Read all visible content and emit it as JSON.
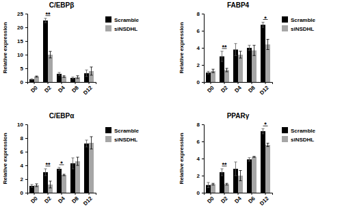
{
  "chart_data": [
    {
      "type": "bar",
      "title": "C/EBPβ",
      "y_label": "Relative expression",
      "categories": [
        "D0",
        "D2",
        "D4",
        "D8",
        "D12"
      ],
      "series": [
        {
          "name": "Scramble",
          "color": "#000000",
          "values": [
            1.0,
            22.5,
            3.0,
            1.5,
            3.2
          ],
          "errors": [
            0.2,
            0.8,
            0.5,
            0.3,
            1.2
          ]
        },
        {
          "name": "siNSDHL",
          "color": "#a6a6a6",
          "values": [
            2.0,
            10.0,
            2.0,
            1.8,
            4.0
          ],
          "errors": [
            0.2,
            1.2,
            0.3,
            0.5,
            1.5
          ]
        }
      ],
      "ylim": [
        0,
        25
      ],
      "yticks": [
        0,
        5,
        10,
        15,
        20,
        25
      ],
      "legend": "right",
      "annotations": [
        {
          "text": "**",
          "category": "D2"
        }
      ]
    },
    {
      "type": "bar",
      "title": "FABP4",
      "y_label": "Relative expression",
      "categories": [
        "D0",
        "D2",
        "D4",
        "D8",
        "D12"
      ],
      "series": [
        {
          "name": "Scramble",
          "color": "#000000",
          "values": [
            1.1,
            3.0,
            3.8,
            4.0,
            6.7
          ],
          "errors": [
            0.15,
            0.6,
            0.7,
            0.3,
            0.3
          ]
        },
        {
          "name": "siNSDHL",
          "color": "#a6a6a6",
          "values": [
            1.3,
            1.4,
            3.2,
            3.7,
            4.4
          ],
          "errors": [
            0.2,
            0.2,
            0.4,
            0.6,
            0.6
          ]
        }
      ],
      "ylim": [
        0,
        8
      ],
      "yticks": [
        0,
        2,
        4,
        6,
        8
      ],
      "legend": "right",
      "annotations": [
        {
          "text": "**",
          "category": "D2"
        },
        {
          "text": "*",
          "category": "D12"
        }
      ]
    },
    {
      "type": "bar",
      "title": "C/EBPα",
      "y_label": "Relative expression",
      "categories": [
        "D0",
        "D2",
        "D4",
        "D8",
        "D12"
      ],
      "series": [
        {
          "name": "Scramble",
          "color": "#000000",
          "values": [
            1.0,
            3.0,
            3.5,
            4.3,
            7.2
          ],
          "errors": [
            0.2,
            0.5,
            0.2,
            0.8,
            0.5
          ]
        },
        {
          "name": "siNSDHL",
          "color": "#a6a6a6",
          "values": [
            1.1,
            1.2,
            2.6,
            4.6,
            7.3
          ],
          "errors": [
            0.2,
            0.5,
            0.1,
            0.6,
            0.9
          ]
        }
      ],
      "ylim": [
        0,
        10
      ],
      "yticks": [
        0,
        2,
        4,
        6,
        8,
        10
      ],
      "legend": "right",
      "annotations": [
        {
          "text": "**",
          "category": "D2"
        },
        {
          "text": "*",
          "category": "D4"
        }
      ]
    },
    {
      "type": "bar",
      "title": "PPARγ",
      "y_label": "Relative expression",
      "categories": [
        "D0",
        "D2",
        "D4",
        "D6",
        "D12"
      ],
      "series": [
        {
          "name": "Scramble",
          "color": "#000000",
          "values": [
            0.9,
            2.4,
            2.8,
            3.9,
            7.2
          ],
          "errors": [
            0.3,
            0.4,
            0.8,
            0.2,
            0.3
          ]
        },
        {
          "name": "siNSDHL",
          "color": "#a6a6a6",
          "values": [
            1.0,
            1.0,
            2.0,
            4.2,
            5.6
          ],
          "errors": [
            0.1,
            0.1,
            0.6,
            0.05,
            0.2
          ]
        }
      ],
      "ylim": [
        0,
        8
      ],
      "yticks": [
        0,
        2,
        4,
        6,
        8
      ],
      "legend": "right",
      "annotations": [
        {
          "text": "**",
          "category": "D2"
        },
        {
          "text": "*",
          "category": "D12"
        }
      ]
    }
  ]
}
